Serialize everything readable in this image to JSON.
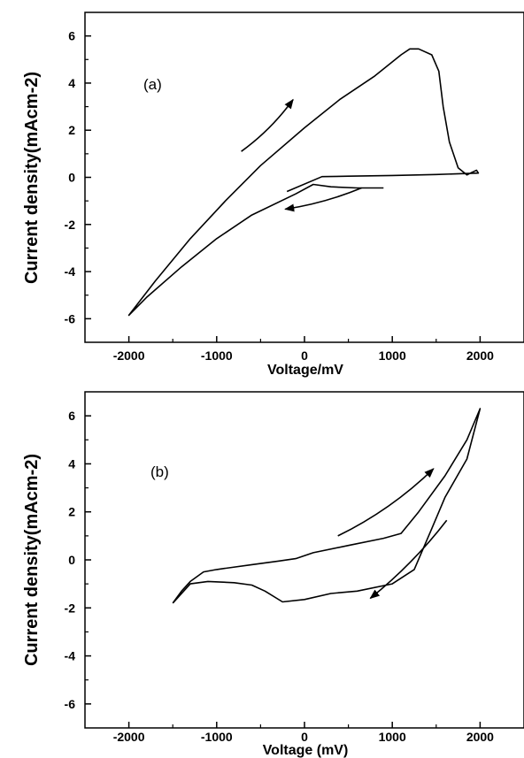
{
  "chart_data": [
    {
      "type": "line",
      "panel_label": "(a)",
      "xlabel": "Voltage/mV",
      "ylabel": "Current density(mAcm-2)",
      "xlim": [
        -2500,
        2500
      ],
      "ylim": [
        -7,
        7
      ],
      "x_ticks": [
        -2000,
        -1000,
        0,
        1000,
        2000
      ],
      "x_tick_labels": [
        "-2000",
        "-1000",
        "0",
        "1000",
        "2000"
      ],
      "y_ticks": [
        -6,
        -4,
        -2,
        0,
        2,
        4,
        6
      ],
      "y_tick_labels": [
        "-6",
        "-4",
        "-2",
        "0",
        "2",
        "4",
        "6"
      ],
      "grid": false,
      "series": [
        {
          "points": [
            [
              900,
              -0.45
            ],
            [
              600,
              -0.45
            ],
            [
              300,
              -0.4
            ],
            [
              100,
              -0.3
            ],
            [
              -100,
              -0.7
            ],
            [
              -600,
              -1.6
            ],
            [
              -1000,
              -2.6
            ],
            [
              -1400,
              -3.8
            ],
            [
              -1800,
              -5.1
            ],
            [
              -2000,
              -5.85
            ],
            [
              -1700,
              -4.4
            ],
            [
              -1300,
              -2.6
            ],
            [
              -900,
              -1.0
            ],
            [
              -500,
              0.5
            ],
            [
              0,
              2.1
            ],
            [
              400,
              3.3
            ],
            [
              800,
              4.3
            ],
            [
              1100,
              5.2
            ],
            [
              1200,
              5.45
            ],
            [
              1300,
              5.45
            ],
            [
              1450,
              5.2
            ],
            [
              1530,
              4.5
            ],
            [
              1580,
              3.0
            ],
            [
              1650,
              1.5
            ],
            [
              1750,
              0.4
            ],
            [
              1850,
              0.1
            ],
            [
              1900,
              0.2
            ],
            [
              1960,
              0.3
            ],
            [
              1980,
              0.18
            ],
            [
              1500,
              0.12
            ],
            [
              1000,
              0.08
            ],
            [
              500,
              0.05
            ],
            [
              200,
              0.03
            ],
            [
              -200,
              -0.6
            ]
          ]
        }
      ],
      "arrows": [
        {
          "direction": "forward",
          "from": [
            -720,
            1.1
          ],
          "to": [
            -130,
            3.3
          ]
        },
        {
          "direction": "reverse",
          "from": [
            650,
            -0.45
          ],
          "to": [
            -220,
            -1.35
          ]
        }
      ]
    },
    {
      "type": "line",
      "panel_label": "(b)",
      "xlabel": "Voltage (mV)",
      "ylabel": "Current density(mAcm-2)",
      "xlim": [
        -2500,
        2500
      ],
      "ylim": [
        -7,
        7
      ],
      "x_ticks": [
        -2000,
        -1000,
        0,
        1000,
        2000
      ],
      "x_tick_labels": [
        "-2000",
        "-1000",
        "0",
        "1000",
        "2000"
      ],
      "y_ticks": [
        -6,
        -4,
        -2,
        0,
        2,
        4,
        6
      ],
      "y_tick_labels": [
        "-6",
        "-4",
        "-2",
        "0",
        "2",
        "4",
        "6"
      ],
      "grid": false,
      "series": [
        {
          "points": [
            [
              -1500,
              -1.8
            ],
            [
              -1400,
              -1.3
            ],
            [
              -1300,
              -0.9
            ],
            [
              -1150,
              -0.5
            ],
            [
              -1000,
              -0.4
            ],
            [
              -600,
              -0.2
            ],
            [
              -300,
              -0.05
            ],
            [
              -100,
              0.05
            ],
            [
              100,
              0.3
            ],
            [
              500,
              0.6
            ],
            [
              900,
              0.9
            ],
            [
              1100,
              1.1
            ],
            [
              1300,
              2.0
            ],
            [
              1600,
              3.5
            ],
            [
              1850,
              5.0
            ],
            [
              2000,
              6.3
            ],
            [
              1850,
              4.2
            ],
            [
              1600,
              2.6
            ],
            [
              1450,
              1.3
            ],
            [
              1250,
              -0.4
            ],
            [
              1000,
              -1.0
            ],
            [
              600,
              -1.3
            ],
            [
              300,
              -1.4
            ],
            [
              0,
              -1.65
            ],
            [
              -250,
              -1.75
            ],
            [
              -450,
              -1.3
            ],
            [
              -600,
              -1.05
            ],
            [
              -800,
              -0.95
            ],
            [
              -1100,
              -0.9
            ],
            [
              -1300,
              -1.0
            ],
            [
              -1500,
              -1.8
            ]
          ]
        }
      ],
      "arrows": [
        {
          "direction": "forward",
          "from": [
            380,
            1.0
          ],
          "to": [
            1470,
            3.8
          ]
        },
        {
          "direction": "reverse",
          "from": [
            1620,
            1.65
          ],
          "to": [
            750,
            -1.6
          ]
        }
      ]
    }
  ]
}
